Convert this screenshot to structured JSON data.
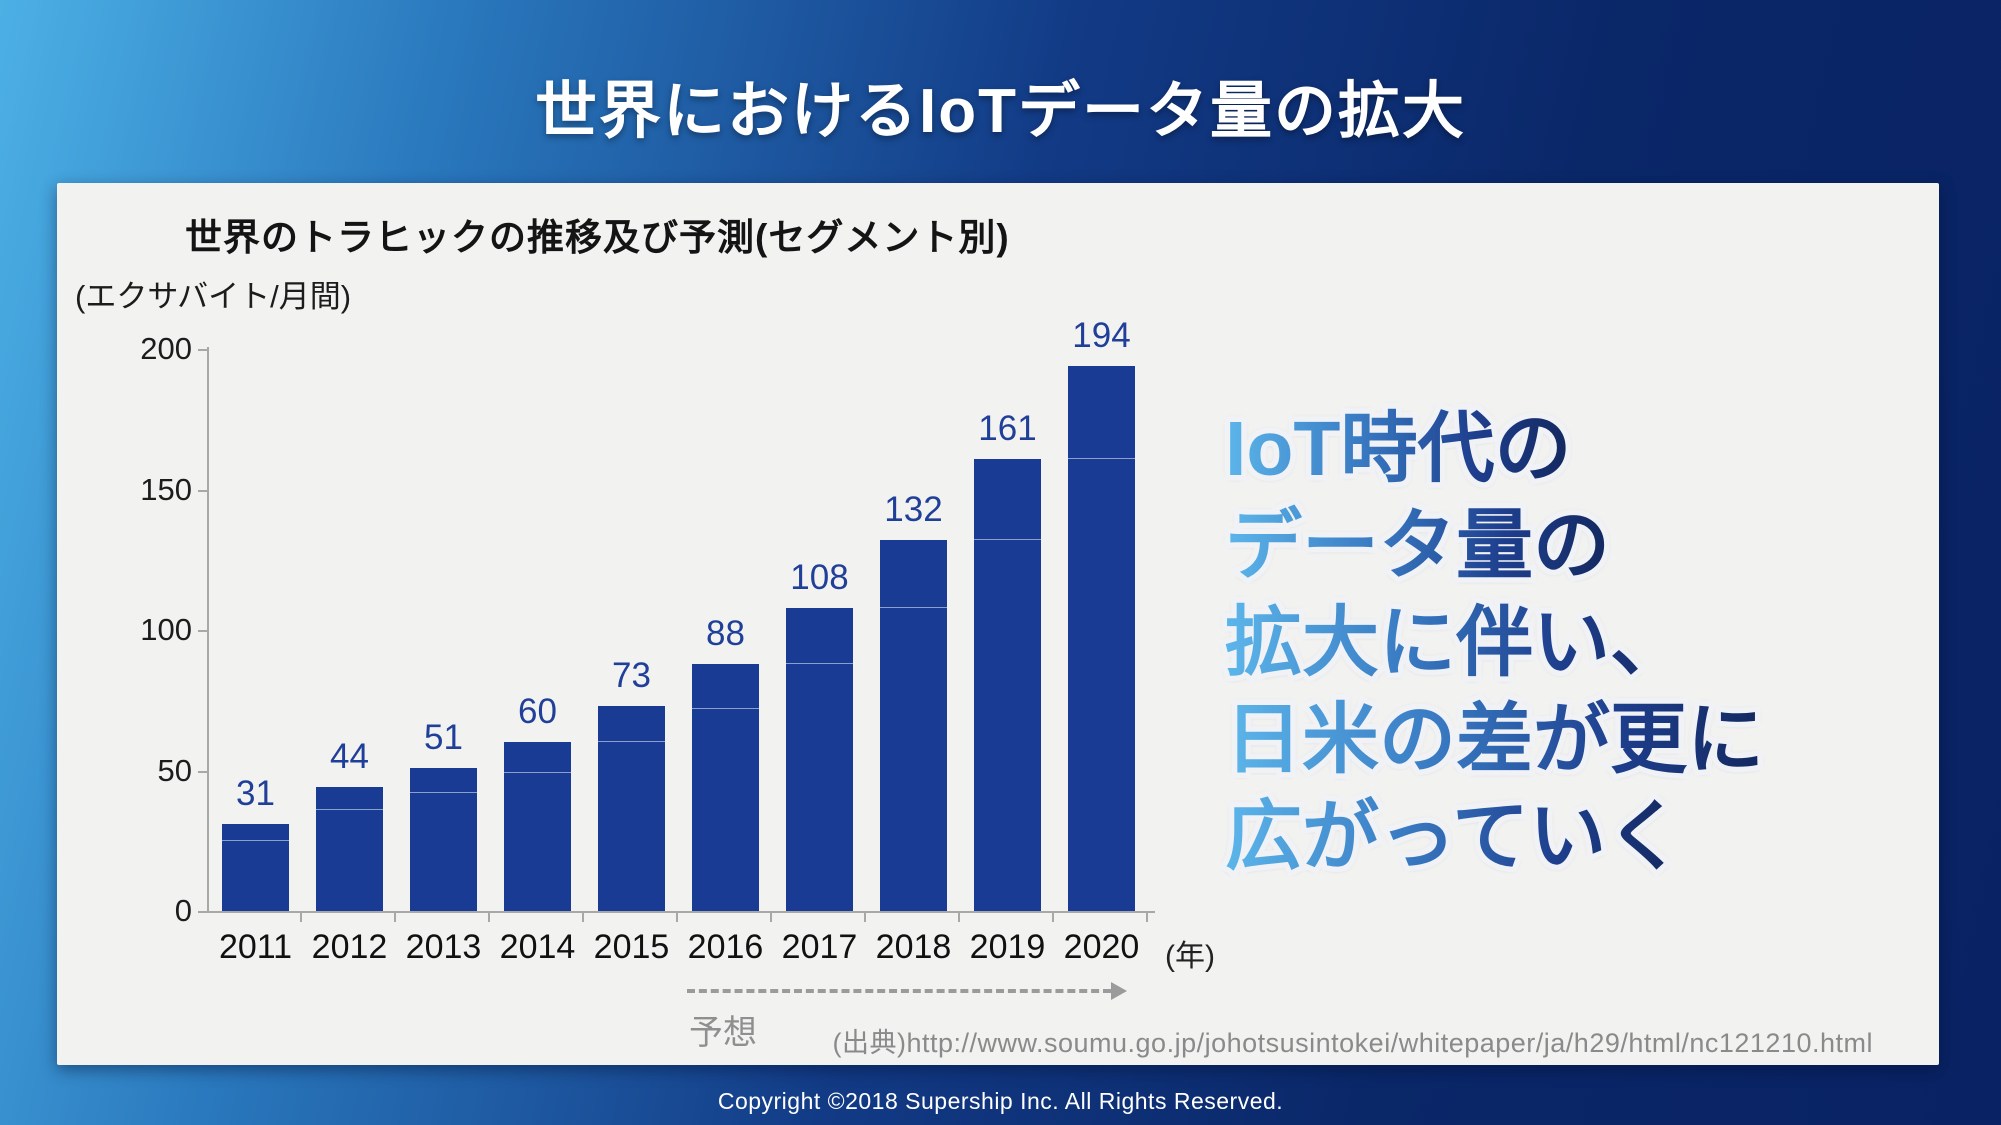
{
  "page_title": "世界におけるIoTデータ量の拡大",
  "panel": {
    "chart_title": "世界のトラヒックの推移及び予測(セグメント別)",
    "y_unit": "(エクサバイト/月間)",
    "x_unit": "(年)",
    "forecast_label": "予想",
    "source_text": "(出典)http://www.soumu.go.jp/johotsusintokei/whitepaper/ja/h29/html/nc121210.html"
  },
  "chart_data": {
    "type": "bar",
    "title": "世界のトラヒックの推移及び予測(セグメント別)",
    "ylabel": "(エクサバイト/月間)",
    "xlabel": "(年)",
    "categories": [
      "2011",
      "2012",
      "2013",
      "2014",
      "2015",
      "2016",
      "2017",
      "2018",
      "2019",
      "2020"
    ],
    "values": [
      31,
      44,
      51,
      60,
      73,
      88,
      108,
      132,
      161,
      194
    ],
    "segment_divider_values": [
      25,
      36,
      42,
      49,
      60,
      72,
      88,
      108,
      132,
      161
    ],
    "ylim": [
      0,
      200
    ],
    "yticks": [
      0,
      50,
      100,
      150,
      200
    ],
    "grid": false,
    "legend": false,
    "bar_color": "#1a3b94",
    "value_label_color": "#1f3f99",
    "forecast": {
      "label": "予想",
      "from_category": "2016",
      "to_category": "2020"
    }
  },
  "headline": {
    "lines": [
      "IoT時代の",
      "データ量の",
      "拡大に伴い、",
      "日米の差が更に",
      "広がっていく"
    ],
    "gradient_from": "#5cb6ea",
    "gradient_to": "#13285f"
  },
  "footer": {
    "copyright": "Copyright ©2018  Supership Inc. All Rights Reserved."
  },
  "colors": {
    "background_left": "#4cb0e5",
    "background_right": "#092263",
    "panel_background": "#f2f2f1",
    "axis": "#a8a8a8",
    "forecast_gray": "#8f8f8f"
  }
}
